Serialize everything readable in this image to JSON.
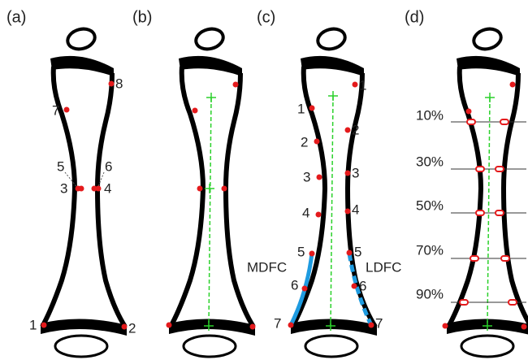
{
  "panels": [
    {
      "label": "(a)",
      "points": [
        "8",
        "7",
        "5",
        "6",
        "3",
        "4",
        "1",
        "2"
      ]
    },
    {
      "label": "(b)"
    },
    {
      "label": "(c)",
      "medial_points": [
        "1",
        "2",
        "3",
        "4",
        "5",
        "6",
        "7"
      ],
      "lateral_points": [
        "1",
        "2",
        "3",
        "4",
        "5",
        "6",
        "7"
      ],
      "curves": [
        "MDFC",
        "LDFC"
      ]
    },
    {
      "label": "(d)",
      "levels": [
        "10%",
        "30%",
        "50%",
        "70%",
        "90%"
      ]
    }
  ]
}
